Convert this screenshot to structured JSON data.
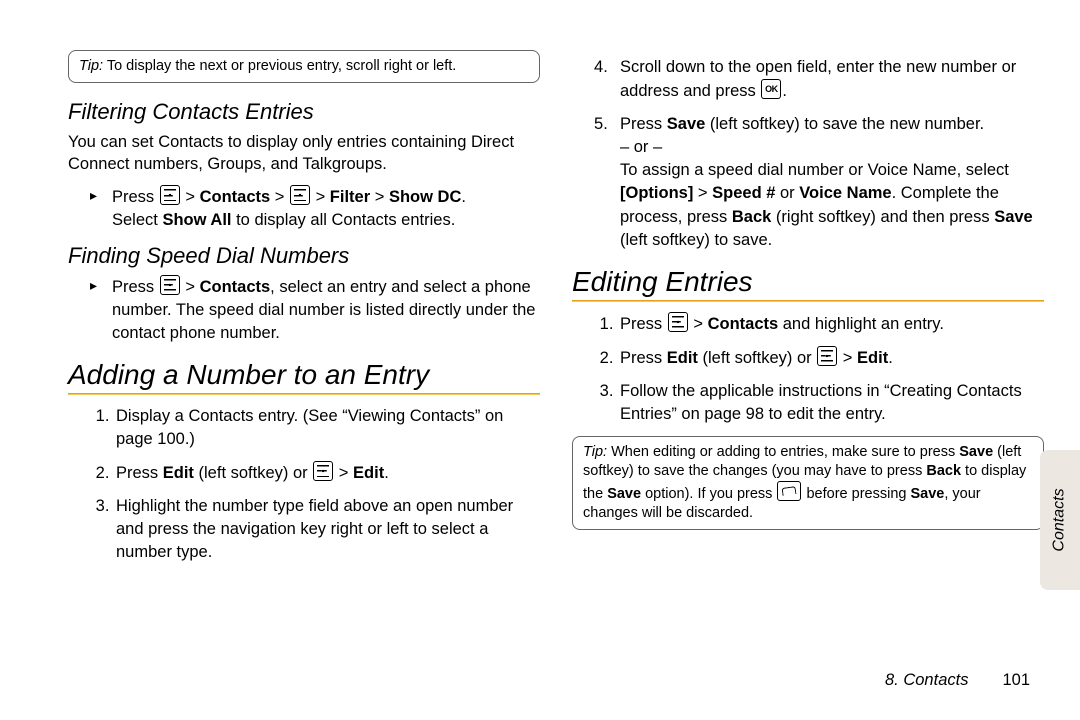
{
  "tipTop": {
    "label": "Tip:",
    "text": "To display the next or previous entry, scroll right or left."
  },
  "s1": {
    "title": "Filtering Contacts Entries",
    "para": "You can set Contacts to display only entries containing Direct Connect numbers, Groups, and Talkgroups.",
    "bullet_pre": "Press ",
    "bullet_mid1": "Contacts",
    "bullet_mid2": "Filter",
    "bullet_mid3": "Show DC",
    "bullet_line2a": "Select ",
    "bullet_line2b": "Show All",
    "bullet_line2c": " to display all Contacts entries."
  },
  "s2": {
    "title": "Finding Speed Dial Numbers",
    "bullet_pre": "Press ",
    "bullet_bold": "Contacts",
    "bullet_rest": ", select an entry and select a phone number. The speed dial number is listed directly under the contact phone number."
  },
  "s3": {
    "title": "Adding a Number to an Entry",
    "li1": "Display a Contacts entry. (See “Viewing Contacts” on page 100.)",
    "li2a": "Press ",
    "li2b": "Edit",
    "li2c": " (left softkey) or ",
    "li2d": "Edit",
    "li3": "Highlight the number type field above an open number and press the navigation key right or left to select a number type."
  },
  "s4": {
    "li4a": "Scroll down to the open field, enter the new number or address and press ",
    "li5a": "Press ",
    "li5b": "Save",
    "li5c": " (left softkey) to save the new number.",
    "or": "– or –",
    "li5d": "To assign a speed dial number or Voice Name, select ",
    "li5e": "[Options]",
    "li5f": "Speed #",
    "li5g": " or ",
    "li5h": "Voice Name",
    "li5i": ". Complete the process, press ",
    "li5j": "Back",
    "li5k": " (right softkey) and then press ",
    "li5l": "Save",
    "li5m": " (left softkey) to save."
  },
  "s5": {
    "title": "Editing Entries",
    "li1a": "Press ",
    "li1b": "Contacts",
    "li1c": " and highlight an entry.",
    "li2a": "Press ",
    "li2b": "Edit",
    "li2c": " (left softkey) or ",
    "li2d": "Edit",
    "li3": "Follow the applicable instructions in “Creating Contacts Entries” on page 98 to edit the entry."
  },
  "tipBottom": {
    "label": "Tip:",
    "t1": "When editing or adding to entries, make sure to press ",
    "t2": "Save",
    "t3": " (left softkey) to save the changes (you may have to press ",
    "t4": "Back",
    "t5": " to display the ",
    "t6": "Save",
    "t7": " option). If you press ",
    "t8": " before pressing ",
    "t9": "Save",
    "t10": ", your changes will be discarded."
  },
  "sidetab": "Contacts",
  "footer": {
    "section": "8. Contacts",
    "page": "101"
  }
}
